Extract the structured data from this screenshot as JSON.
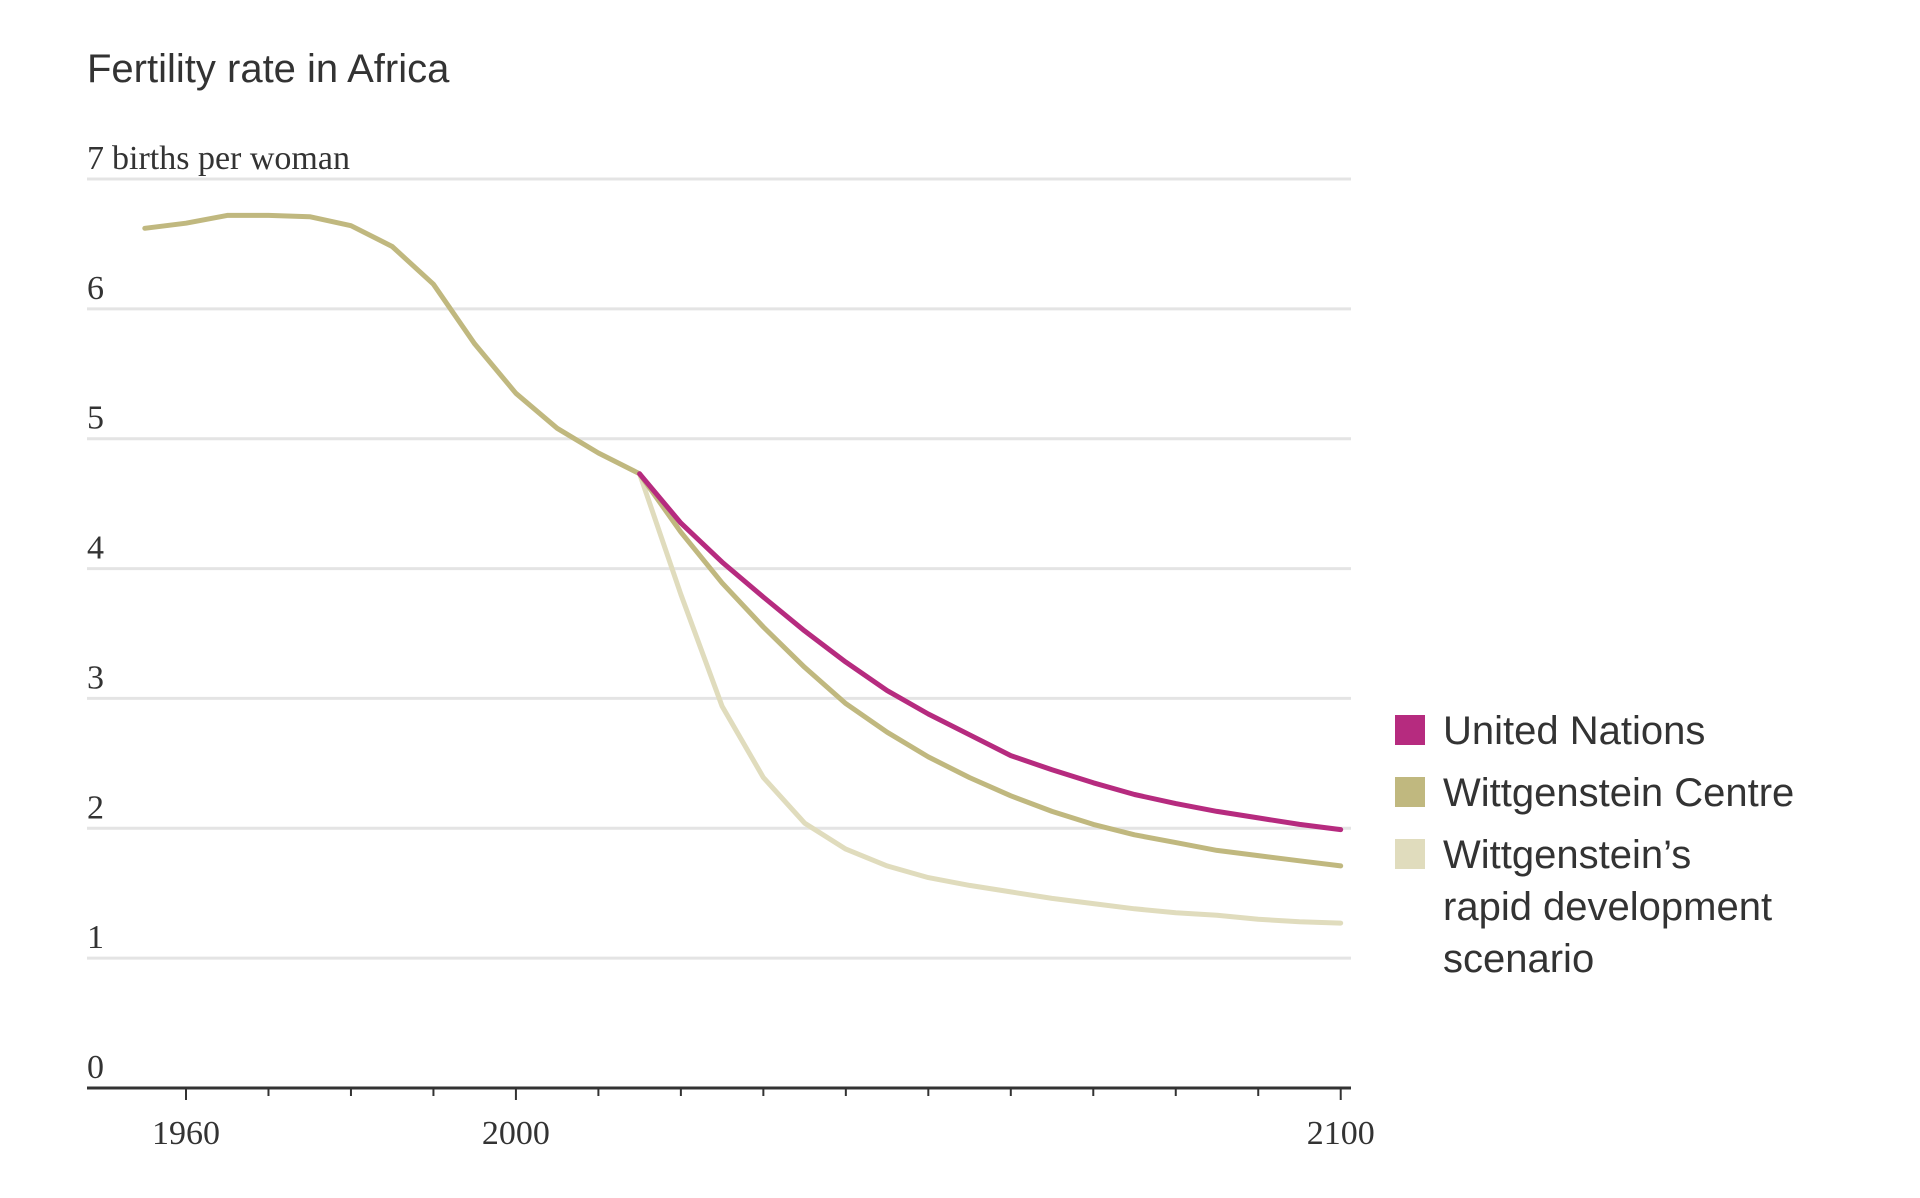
{
  "chart_data": {
    "type": "line",
    "title": "Fertility rate in Africa",
    "ylabel": "births per woman",
    "ylim": [
      0,
      7
    ],
    "xlim": [
      1953,
      2102
    ],
    "yticks": [
      "0",
      "1",
      "2",
      "3",
      "4",
      "5",
      "6",
      "7"
    ],
    "xticks": [
      {
        "value": 1960,
        "label": "1960"
      },
      {
        "value": 2000,
        "label": "2000"
      },
      {
        "value": 2100,
        "label": "2100"
      }
    ],
    "minor_xticks": [
      1970,
      1980,
      1990,
      2010,
      2020,
      2030,
      2040,
      2050,
      2060,
      2070,
      2080,
      2090
    ],
    "grid": true,
    "legend_position": "right",
    "series": [
      {
        "name": "United Nations",
        "color": "#b62b7f",
        "x": [
          2015,
          2020,
          2025,
          2030,
          2035,
          2040,
          2045,
          2050,
          2055,
          2060,
          2065,
          2070,
          2075,
          2080,
          2085,
          2090,
          2095,
          2100
        ],
        "y": [
          4.73,
          4.35,
          4.05,
          3.78,
          3.52,
          3.28,
          3.06,
          2.88,
          2.72,
          2.56,
          2.45,
          2.35,
          2.26,
          2.19,
          2.13,
          2.08,
          2.03,
          1.99
        ]
      },
      {
        "name": "Wittgenstein Centre",
        "color": "#c0b87f",
        "x": [
          1955,
          1960,
          1965,
          1970,
          1975,
          1980,
          1985,
          1990,
          1995,
          2000,
          2005,
          2010,
          2015,
          2020,
          2025,
          2030,
          2035,
          2040,
          2045,
          2050,
          2055,
          2060,
          2065,
          2070,
          2075,
          2080,
          2085,
          2090,
          2095,
          2100
        ],
        "y": [
          6.62,
          6.66,
          6.72,
          6.72,
          6.71,
          6.64,
          6.48,
          6.19,
          5.73,
          5.35,
          5.08,
          4.89,
          4.73,
          4.28,
          3.89,
          3.55,
          3.24,
          2.96,
          2.74,
          2.55,
          2.39,
          2.25,
          2.13,
          2.03,
          1.95,
          1.89,
          1.83,
          1.79,
          1.75,
          1.71
        ]
      },
      {
        "name": "Wittgenstein’s rapid development scenario",
        "color": "#e0dcbd",
        "x": [
          2015,
          2020,
          2025,
          2030,
          2035,
          2040,
          2045,
          2050,
          2055,
          2060,
          2065,
          2070,
          2075,
          2080,
          2085,
          2090,
          2095,
          2100
        ],
        "y": [
          4.73,
          3.8,
          2.94,
          2.39,
          2.04,
          1.84,
          1.71,
          1.62,
          1.56,
          1.51,
          1.46,
          1.42,
          1.38,
          1.35,
          1.33,
          1.3,
          1.28,
          1.27
        ]
      }
    ],
    "legend": [
      {
        "lines": [
          "United Nations"
        ],
        "color": "#b62b7f"
      },
      {
        "lines": [
          "Wittgenstein Centre"
        ],
        "color": "#c0b87f"
      },
      {
        "lines": [
          "Wittgenstein’s",
          "rapid development",
          "scenario"
        ],
        "color": "#e0dcbd"
      }
    ]
  }
}
